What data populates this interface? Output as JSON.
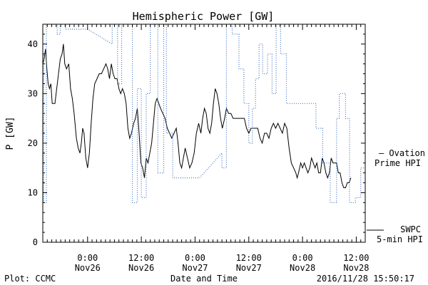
{
  "title": "Hemispheric Power [GW]",
  "footer": {
    "plot_credit": "Plot: CCMC",
    "xlabel": "Date and Time",
    "timestamp": "2016/11/28 15:50:17"
  },
  "chart_data": {
    "type": "line",
    "title": "Hemispheric Power [GW]",
    "xlabel": "Date and Time",
    "ylabel": "P [GW]",
    "x_unit": "hours since Nov 25 14:00",
    "xlim": [
      0,
      72
    ],
    "ylim": [
      0,
      44
    ],
    "yticks": [
      0,
      10,
      20,
      30,
      40
    ],
    "xticks": [
      {
        "x": 10,
        "line1": "0:00",
        "line2": "Nov26"
      },
      {
        "x": 22,
        "line1": "12:00",
        "line2": "Nov26"
      },
      {
        "x": 34,
        "line1": "0:00",
        "line2": "Nov27"
      },
      {
        "x": 46,
        "line1": "12:00",
        "line2": "Nov27"
      },
      {
        "x": 58,
        "line1": "0:00",
        "line2": "Nov28"
      },
      {
        "x": 70,
        "line1": "12:00",
        "line2": "Nov28"
      }
    ],
    "grid": false,
    "legend_position": "right",
    "series": [
      {
        "name": "SWPC 5-min HPI",
        "style": "solid",
        "color": "#000000",
        "legend": [
          "SWPC",
          "5-min HPI"
        ],
        "points": [
          [
            0,
            36
          ],
          [
            0.3,
            37
          ],
          [
            0.6,
            39
          ],
          [
            0.9,
            35
          ],
          [
            1.2,
            32
          ],
          [
            1.5,
            31
          ],
          [
            1.8,
            32
          ],
          [
            2.1,
            28
          ],
          [
            2.7,
            28
          ],
          [
            3.1,
            31
          ],
          [
            3.5,
            34
          ],
          [
            3.9,
            37
          ],
          [
            4.3,
            38
          ],
          [
            4.6,
            40
          ],
          [
            4.9,
            36
          ],
          [
            5.3,
            35
          ],
          [
            5.8,
            36
          ],
          [
            6.2,
            31
          ],
          [
            6.6,
            29
          ],
          [
            7,
            26
          ],
          [
            7.5,
            21
          ],
          [
            7.9,
            19
          ],
          [
            8.3,
            18
          ],
          [
            8.6,
            20
          ],
          [
            8.9,
            23
          ],
          [
            9.2,
            22
          ],
          [
            9.6,
            17
          ],
          [
            10,
            15
          ],
          [
            10.4,
            18
          ],
          [
            10.8,
            24
          ],
          [
            11.2,
            29
          ],
          [
            11.6,
            32
          ],
          [
            12.1,
            33
          ],
          [
            12.6,
            34
          ],
          [
            13.1,
            34
          ],
          [
            13.6,
            35
          ],
          [
            14.1,
            36
          ],
          [
            14.5,
            35
          ],
          [
            14.9,
            33
          ],
          [
            15.3,
            36
          ],
          [
            15.7,
            34
          ],
          [
            16.1,
            33
          ],
          [
            16.6,
            33
          ],
          [
            17,
            31
          ],
          [
            17.4,
            30
          ],
          [
            17.8,
            31
          ],
          [
            18.2,
            30
          ],
          [
            18.6,
            28
          ],
          [
            19,
            23
          ],
          [
            19.4,
            21
          ],
          [
            19.8,
            22
          ],
          [
            20.3,
            24
          ],
          [
            20.7,
            25
          ],
          [
            21.1,
            27
          ],
          [
            21.5,
            22
          ],
          [
            21.9,
            16
          ],
          [
            22.3,
            15
          ],
          [
            22.7,
            13
          ],
          [
            23.1,
            17
          ],
          [
            23.5,
            16
          ],
          [
            23.9,
            18
          ],
          [
            24.3,
            20
          ],
          [
            24.7,
            24
          ],
          [
            25.1,
            28
          ],
          [
            25.5,
            29
          ],
          [
            25.9,
            28
          ],
          [
            26.3,
            27
          ],
          [
            26.8,
            26
          ],
          [
            27.3,
            25
          ],
          [
            27.8,
            23
          ],
          [
            28.3,
            22
          ],
          [
            28.8,
            21
          ],
          [
            29.3,
            22
          ],
          [
            29.8,
            23
          ],
          [
            30.2,
            20
          ],
          [
            30.6,
            16
          ],
          [
            31,
            15
          ],
          [
            31.4,
            17
          ],
          [
            31.8,
            19
          ],
          [
            32.3,
            17
          ],
          [
            32.8,
            15
          ],
          [
            33.3,
            16
          ],
          [
            33.8,
            18
          ],
          [
            34.3,
            22
          ],
          [
            34.8,
            24
          ],
          [
            35.3,
            22
          ],
          [
            35.7,
            25
          ],
          [
            36.1,
            27
          ],
          [
            36.5,
            26
          ],
          [
            36.9,
            23
          ],
          [
            37.3,
            22
          ],
          [
            37.7,
            24
          ],
          [
            38.1,
            28
          ],
          [
            38.5,
            31
          ],
          [
            38.9,
            30
          ],
          [
            39.3,
            28
          ],
          [
            39.7,
            25
          ],
          [
            40.1,
            23
          ],
          [
            40.6,
            25
          ],
          [
            41,
            27
          ],
          [
            41.5,
            26
          ],
          [
            42,
            26
          ],
          [
            42.5,
            25
          ],
          [
            43,
            25
          ],
          [
            43.5,
            25
          ],
          [
            44,
            25
          ],
          [
            44.5,
            25
          ],
          [
            45,
            25
          ],
          [
            45.5,
            23
          ],
          [
            46,
            22
          ],
          [
            46.5,
            23
          ],
          [
            47,
            23
          ],
          [
            47.5,
            23
          ],
          [
            48,
            23
          ],
          [
            48.5,
            21
          ],
          [
            49,
            20
          ],
          [
            49.5,
            22
          ],
          [
            50,
            22
          ],
          [
            50.5,
            21
          ],
          [
            51,
            23
          ],
          [
            51.5,
            24
          ],
          [
            52,
            23
          ],
          [
            52.5,
            24
          ],
          [
            53,
            23
          ],
          [
            53.5,
            22
          ],
          [
            54,
            24
          ],
          [
            54.5,
            23
          ],
          [
            55,
            19
          ],
          [
            55.5,
            16
          ],
          [
            56,
            15
          ],
          [
            56.5,
            14
          ],
          [
            56.8,
            13
          ],
          [
            57.1,
            14
          ],
          [
            57.6,
            16
          ],
          [
            58,
            15
          ],
          [
            58.4,
            16
          ],
          [
            58.8,
            15
          ],
          [
            59.2,
            14
          ],
          [
            59.6,
            15
          ],
          [
            60,
            17
          ],
          [
            60.4,
            16
          ],
          [
            60.8,
            15
          ],
          [
            61.2,
            16
          ],
          [
            61.6,
            14
          ],
          [
            62,
            14
          ],
          [
            62.4,
            17
          ],
          [
            62.8,
            16
          ],
          [
            63.2,
            14
          ],
          [
            63.6,
            13
          ],
          [
            64,
            14
          ],
          [
            64.4,
            17
          ],
          [
            64.8,
            16
          ],
          [
            65.2,
            16
          ],
          [
            65.6,
            16
          ],
          [
            66,
            14
          ],
          [
            66.4,
            14
          ],
          [
            66.8,
            12
          ],
          [
            67.2,
            11
          ],
          [
            67.6,
            11
          ],
          [
            68,
            12
          ],
          [
            68.4,
            12
          ],
          [
            68.8,
            13
          ]
        ]
      },
      {
        "name": "Ovation Prime HPI",
        "style": "dotted",
        "color": "#4a76c0",
        "legend": [
          "— Ovation",
          "Prime HPI"
        ],
        "points": [
          [
            0,
            38
          ],
          [
            0.2,
            38
          ],
          [
            0.2,
            8
          ],
          [
            0.8,
            8
          ],
          [
            0.8,
            45
          ],
          [
            3.2,
            45
          ],
          [
            3.2,
            42
          ],
          [
            3.9,
            42
          ],
          [
            3.9,
            44
          ],
          [
            5.1,
            44
          ],
          [
            5.1,
            43
          ],
          [
            10,
            43
          ],
          [
            10,
            43
          ],
          [
            15.5,
            40
          ],
          [
            15.5,
            44
          ],
          [
            16.7,
            44
          ],
          [
            16.7,
            32
          ],
          [
            17.6,
            32
          ],
          [
            17.6,
            45
          ],
          [
            20,
            45
          ],
          [
            20,
            8
          ],
          [
            21.1,
            8
          ],
          [
            21.1,
            31
          ],
          [
            22,
            31
          ],
          [
            22,
            9
          ],
          [
            23.1,
            9
          ],
          [
            23.1,
            30
          ],
          [
            24,
            30
          ],
          [
            24,
            44
          ],
          [
            25.7,
            44
          ],
          [
            25.7,
            14
          ],
          [
            27,
            14
          ],
          [
            27,
            44
          ],
          [
            27.6,
            44
          ],
          [
            27.6,
            22
          ],
          [
            29,
            22
          ],
          [
            29,
            13
          ],
          [
            35,
            13
          ],
          [
            35,
            13
          ],
          [
            40,
            18
          ],
          [
            40,
            15
          ],
          [
            41,
            15
          ],
          [
            41,
            45
          ],
          [
            42.3,
            45
          ],
          [
            42.3,
            42
          ],
          [
            43.8,
            42
          ],
          [
            43.8,
            35
          ],
          [
            44.9,
            35
          ],
          [
            44.9,
            28
          ],
          [
            46,
            28
          ],
          [
            46,
            20
          ],
          [
            46.8,
            20
          ],
          [
            46.8,
            27
          ],
          [
            47.5,
            27
          ],
          [
            47.5,
            33
          ],
          [
            48.3,
            33
          ],
          [
            48.3,
            40
          ],
          [
            49.1,
            40
          ],
          [
            49.1,
            34
          ],
          [
            50.2,
            34
          ],
          [
            50.2,
            38
          ],
          [
            51.2,
            38
          ],
          [
            51.2,
            30
          ],
          [
            52.1,
            30
          ],
          [
            52.1,
            45
          ],
          [
            53.1,
            45
          ],
          [
            53.1,
            38
          ],
          [
            54.4,
            38
          ],
          [
            54.4,
            28
          ],
          [
            61,
            28
          ],
          [
            61,
            23
          ],
          [
            62.5,
            23
          ],
          [
            62.5,
            16
          ],
          [
            64.2,
            16
          ],
          [
            64.2,
            8
          ],
          [
            65.6,
            8
          ],
          [
            65.6,
            25
          ],
          [
            66.2,
            25
          ],
          [
            66.2,
            30
          ],
          [
            67.6,
            30
          ],
          [
            67.6,
            25
          ],
          [
            68.5,
            25
          ],
          [
            68.5,
            8
          ],
          [
            69.8,
            8
          ],
          [
            69.8,
            9
          ],
          [
            71,
            9
          ],
          [
            71,
            15
          ],
          [
            72.2,
            15
          ],
          [
            72.2,
            25
          ],
          [
            73,
            25
          ],
          [
            73,
            39
          ]
        ]
      }
    ]
  }
}
